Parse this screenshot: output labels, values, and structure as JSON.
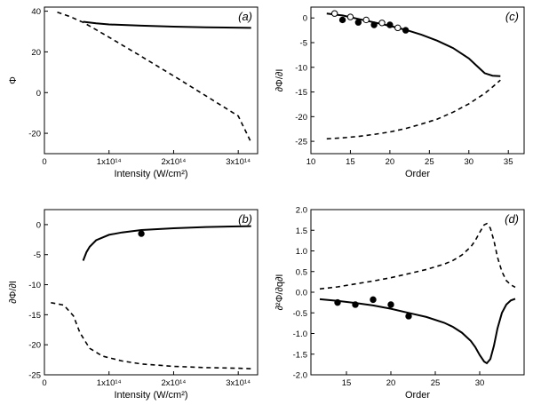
{
  "chart_data": [
    {
      "id": "a",
      "type": "line",
      "panel_label": "(a)",
      "xlabel": "Intensity (W/cm²)",
      "ylabel": "Φ",
      "xlim": [
        0,
        330000000000000.0
      ],
      "ylim": [
        -30,
        42
      ],
      "xticks": [
        {
          "value": 0,
          "label": "0"
        },
        {
          "value": 100000000000000.0,
          "label": "1x10¹⁴"
        },
        {
          "value": 200000000000000.0,
          "label": "2x10¹⁴"
        },
        {
          "value": 300000000000000.0,
          "label": "3x10¹⁴"
        }
      ],
      "yticks": [
        {
          "value": -20,
          "label": "-20"
        },
        {
          "value": 0,
          "label": "0"
        },
        {
          "value": 20,
          "label": "20"
        },
        {
          "value": 40,
          "label": "40"
        }
      ],
      "series": [
        {
          "style": "solid",
          "x": [
            60000000000000.0,
            80000000000000.0,
            100000000000000.0,
            150000000000000.0,
            200000000000000.0,
            250000000000000.0,
            320000000000000.0
          ],
          "y": [
            34.8,
            34.0,
            33.5,
            32.9,
            32.4,
            32.1,
            31.8
          ]
        },
        {
          "style": "dashed",
          "x": [
            20000000000000.0,
            40000000000000.0,
            60000000000000.0,
            80000000000000.0,
            100000000000000.0,
            150000000000000.0,
            200000000000000.0,
            250000000000000.0,
            300000000000000.0,
            320000000000000.0
          ],
          "y": [
            39.5,
            37.3,
            34.5,
            30.9,
            27.2,
            17.8,
            8.2,
            -1.6,
            -11.5,
            -24.5
          ]
        }
      ],
      "points": []
    },
    {
      "id": "b",
      "type": "line",
      "panel_label": "(b)",
      "xlabel": "Intensity (W/cm²)",
      "ylabel": "∂Φ/∂I",
      "xlim": [
        0,
        330000000000000.0
      ],
      "ylim": [
        -25,
        2.5
      ],
      "xticks": [
        {
          "value": 0,
          "label": "0"
        },
        {
          "value": 100000000000000.0,
          "label": "1x10¹⁴"
        },
        {
          "value": 200000000000000.0,
          "label": "2x10¹⁴"
        },
        {
          "value": 300000000000000.0,
          "label": "3x10¹⁴"
        }
      ],
      "yticks": [
        {
          "value": -25,
          "label": "-25"
        },
        {
          "value": -20,
          "label": "-20"
        },
        {
          "value": -15,
          "label": "-15"
        },
        {
          "value": -10,
          "label": "-10"
        },
        {
          "value": -5,
          "label": "-5"
        },
        {
          "value": 0,
          "label": "0"
        }
      ],
      "series": [
        {
          "style": "solid",
          "x": [
            60000000000000.0,
            65000000000000.0,
            70000000000000.0,
            80000000000000.0,
            100000000000000.0,
            120000000000000.0,
            150000000000000.0,
            200000000000000.0,
            250000000000000.0,
            300000000000000.0,
            320000000000000.0
          ],
          "y": [
            -6.0,
            -4.6,
            -3.7,
            -2.6,
            -1.7,
            -1.3,
            -0.9,
            -0.6,
            -0.4,
            -0.3,
            -0.25
          ]
        },
        {
          "style": "dashed",
          "x": [
            10000000000000.0,
            30000000000000.0,
            45000000000000.0,
            55000000000000.0,
            70000000000000.0,
            90000000000000.0,
            120000000000000.0,
            150000000000000.0,
            200000000000000.0,
            250000000000000.0,
            300000000000000.0,
            320000000000000.0
          ],
          "y": [
            -13.0,
            -13.4,
            -15.2,
            -18.0,
            -20.6,
            -21.9,
            -22.7,
            -23.2,
            -23.6,
            -23.8,
            -23.9,
            -24.0
          ]
        }
      ],
      "points": [
        {
          "x": 150000000000000.0,
          "y": -1.5,
          "filled": true
        }
      ]
    },
    {
      "id": "c",
      "type": "line",
      "panel_label": "(c)",
      "xlabel": "Order",
      "ylabel": "∂Φ/∂I",
      "xlim": [
        10,
        37
      ],
      "ylim": [
        -27.5,
        2.2
      ],
      "xticks": [
        {
          "value": 10,
          "label": "10"
        },
        {
          "value": 15,
          "label": "15"
        },
        {
          "value": 20,
          "label": "20"
        },
        {
          "value": 25,
          "label": "25"
        },
        {
          "value": 30,
          "label": "30"
        },
        {
          "value": 35,
          "label": "35"
        }
      ],
      "yticks": [
        {
          "value": -25,
          "label": "-25"
        },
        {
          "value": -20,
          "label": "-20"
        },
        {
          "value": -15,
          "label": "-15"
        },
        {
          "value": -10,
          "label": "-10"
        },
        {
          "value": -5,
          "label": "-5"
        },
        {
          "value": 0,
          "label": "0"
        }
      ],
      "series": [
        {
          "style": "solid",
          "x": [
            12,
            14,
            16,
            18,
            20,
            22,
            24,
            26,
            28,
            30,
            31,
            32,
            33,
            34
          ],
          "y": [
            0.9,
            0.5,
            -0.2,
            -0.9,
            -1.6,
            -2.4,
            -3.4,
            -4.6,
            -6.1,
            -8.2,
            -9.7,
            -11.2,
            -11.7,
            -11.8
          ]
        },
        {
          "style": "dashed",
          "x": [
            12,
            14,
            16,
            18,
            20,
            22,
            24,
            26,
            28,
            30,
            32,
            33,
            34
          ],
          "y": [
            -24.5,
            -24.3,
            -24.0,
            -23.6,
            -23.1,
            -22.4,
            -21.5,
            -20.5,
            -19.1,
            -17.4,
            -15.3,
            -14.0,
            -12.6
          ]
        }
      ],
      "points": [
        {
          "x": 13,
          "y": 0.9,
          "filled": false
        },
        {
          "x": 14,
          "y": -0.4,
          "filled": true
        },
        {
          "x": 15,
          "y": 0.2,
          "filled": false
        },
        {
          "x": 16,
          "y": -0.9,
          "filled": true
        },
        {
          "x": 17,
          "y": -0.4,
          "filled": false
        },
        {
          "x": 18,
          "y": -1.4,
          "filled": true
        },
        {
          "x": 19,
          "y": -1.0,
          "filled": false
        },
        {
          "x": 20,
          "y": -1.4,
          "filled": true
        },
        {
          "x": 21,
          "y": -2.0,
          "filled": false
        },
        {
          "x": 22,
          "y": -2.5,
          "filled": true
        }
      ]
    },
    {
      "id": "d",
      "type": "line",
      "panel_label": "(d)",
      "xlabel": "Order",
      "ylabel": "∂²Φ/∂q∂I",
      "xlim": [
        11,
        35
      ],
      "ylim": [
        -2.0,
        2.0
      ],
      "xticks": [
        {
          "value": 15,
          "label": "15"
        },
        {
          "value": 20,
          "label": "20"
        },
        {
          "value": 25,
          "label": "25"
        },
        {
          "value": 30,
          "label": "30"
        }
      ],
      "yticks": [
        {
          "value": -2.0,
          "label": "-2.0"
        },
        {
          "value": -1.5,
          "label": "-1.5"
        },
        {
          "value": -1.0,
          "label": "-1.0"
        },
        {
          "value": -0.5,
          "label": "-0.5"
        },
        {
          "value": 0.0,
          "label": "0.0"
        },
        {
          "value": 0.5,
          "label": "0.5"
        },
        {
          "value": 1.0,
          "label": "1.0"
        },
        {
          "value": 1.5,
          "label": "1.5"
        },
        {
          "value": 2.0,
          "label": "2.0"
        }
      ],
      "series": [
        {
          "style": "solid",
          "x": [
            12,
            14,
            16,
            18,
            20,
            22,
            24,
            26,
            27,
            28,
            29,
            29.5,
            30,
            30.5,
            30.8,
            31.2,
            31.6,
            32,
            32.5,
            33,
            33.5,
            34
          ],
          "y": [
            -0.17,
            -0.21,
            -0.26,
            -0.32,
            -0.4,
            -0.5,
            -0.6,
            -0.74,
            -0.84,
            -0.98,
            -1.18,
            -1.33,
            -1.52,
            -1.68,
            -1.72,
            -1.62,
            -1.3,
            -0.88,
            -0.5,
            -0.3,
            -0.2,
            -0.16
          ]
        },
        {
          "style": "dashed",
          "x": [
            12,
            14,
            16,
            18,
            20,
            22,
            24,
            26,
            27,
            28,
            29,
            29.5,
            30,
            30.5,
            30.8,
            31.2,
            31.6,
            32,
            32.5,
            33,
            33.5,
            34
          ],
          "y": [
            0.08,
            0.13,
            0.2,
            0.27,
            0.35,
            0.45,
            0.55,
            0.68,
            0.77,
            0.9,
            1.1,
            1.25,
            1.45,
            1.63,
            1.66,
            1.55,
            1.25,
            0.85,
            0.5,
            0.28,
            0.18,
            0.12
          ]
        }
      ],
      "points": [
        {
          "x": 14,
          "y": -0.25,
          "filled": true
        },
        {
          "x": 16,
          "y": -0.3,
          "filled": true
        },
        {
          "x": 18,
          "y": -0.18,
          "filled": true
        },
        {
          "x": 20,
          "y": -0.3,
          "filled": true
        },
        {
          "x": 22,
          "y": -0.58,
          "filled": true
        }
      ]
    }
  ]
}
